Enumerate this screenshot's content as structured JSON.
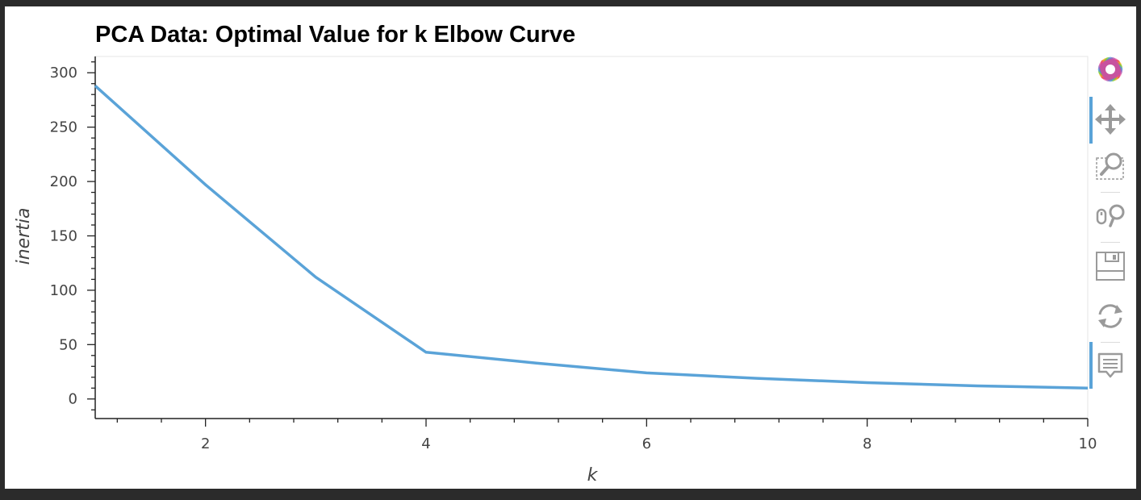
{
  "chart_data": {
    "type": "line",
    "title": "PCA Data: Optimal Value for k Elbow Curve",
    "xlabel": "k",
    "ylabel": "inertia",
    "x": [
      1,
      2,
      3,
      4,
      5,
      6,
      7,
      8,
      9,
      10
    ],
    "series": [
      {
        "values": [
          288,
          197,
          112,
          43,
          33,
          24,
          19,
          15,
          12,
          10
        ]
      }
    ],
    "xlim": [
      1,
      10
    ],
    "ylim": [
      -18,
      315
    ],
    "xticks": [
      "2",
      "4",
      "6",
      "8",
      "10"
    ],
    "yticks": [
      "0",
      "50",
      "100",
      "150",
      "200",
      "250",
      "300"
    ],
    "grid": false,
    "line_color": "#5aa3d8"
  },
  "toolbar": {
    "tools": [
      "bokeh-logo-icon",
      "pan-icon",
      "box-zoom-icon",
      "wheel-zoom-icon",
      "save-icon",
      "reset-icon",
      "hover-icon"
    ]
  }
}
